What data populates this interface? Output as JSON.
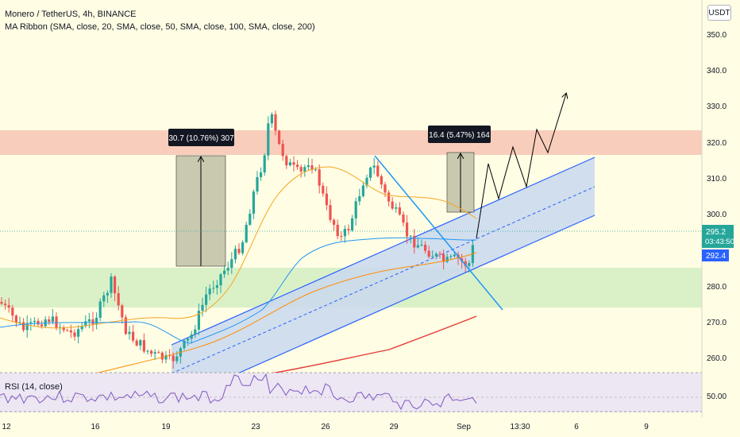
{
  "header": {
    "symbol_line": "Monero / TetherUS, 4h, BINANCE",
    "indicator_line": "MA Ribbon (SMA, close, 20, SMA, close, 50, SMA, close, 100, SMA, close, 200)",
    "rsi_line": "RSI (14, close)",
    "currency_button": "USDT"
  },
  "colors": {
    "background": "#fffde4",
    "up_candle": "#26a69a",
    "down_candle": "#ef5350",
    "resistance_zone": "#f8c4b4",
    "support_zone": "#d6efc4",
    "channel_line": "#2962ff",
    "trendline": "#2196f3",
    "ma20": "#f5a623",
    "ma50": "#2196f3",
    "ma100": "#ff8c00",
    "ma200": "#e53935",
    "rsi_line": "#7e57c2",
    "price_badge": "#26a69a",
    "ma_badge": "#2962ff"
  },
  "chart_data": {
    "type": "candlestick",
    "y_axis_labels": [
      "350.0",
      "340.0",
      "330.0",
      "320.0",
      "310.0",
      "300.0",
      "280.0",
      "270.0",
      "260.0"
    ],
    "x_axis_labels": [
      "12",
      "16",
      "19",
      "23",
      "26",
      "29",
      "Sep",
      "13:30",
      "6",
      "9"
    ],
    "ylim": [
      256,
      356
    ],
    "resistance_zone": [
      316,
      323
    ],
    "support_zone": [
      274,
      285
    ],
    "measure_1": {
      "label": "30.7 (10.76%) 307",
      "from": 285.6,
      "to": 316.3
    },
    "measure_2": {
      "label": "16.4 (5.47%) 164",
      "from": 300.6,
      "to": 317.0
    },
    "last_price": {
      "value": "295.2",
      "countdown": "03:43:50"
    },
    "ma_value": "292.4",
    "rsi": {
      "axis_label": "50.00"
    }
  }
}
